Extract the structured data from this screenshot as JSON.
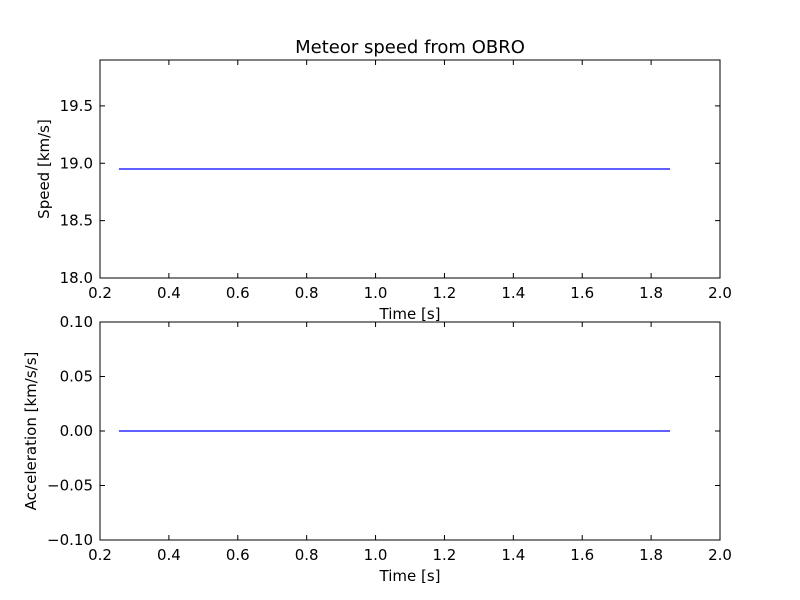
{
  "title": "Meteor speed from  OBRO",
  "chart_data": [
    {
      "type": "line",
      "xlabel": "Time [s]",
      "ylabel": "Speed [km/s]",
      "xlim": [
        0.2,
        2.0
      ],
      "ylim": [
        18.0,
        19.9
      ],
      "xticks": [
        "0.2",
        "0.4",
        "0.6",
        "0.8",
        "1.0",
        "1.2",
        "1.4",
        "1.6",
        "1.8",
        "2.0"
      ],
      "yticks": [
        "18.0",
        "18.5",
        "19.0",
        "19.5"
      ],
      "grid": false,
      "series": [
        {
          "x": [
            0.255,
            1.855
          ],
          "y": [
            18.95,
            18.95
          ],
          "color": "#0000ff"
        }
      ]
    },
    {
      "type": "line",
      "xlabel": "Time [s]",
      "ylabel": "Acceleration [km/s/s]",
      "xlim": [
        0.2,
        2.0
      ],
      "ylim": [
        -0.1,
        0.1
      ],
      "xticks": [
        "0.2",
        "0.4",
        "0.6",
        "0.8",
        "1.0",
        "1.2",
        "1.4",
        "1.6",
        "1.8",
        "2.0"
      ],
      "yticks": [
        "−0.10",
        "−0.05",
        "0.00",
        "0.05",
        "0.10"
      ],
      "grid": false,
      "series": [
        {
          "x": [
            0.255,
            1.855
          ],
          "y": [
            0.0,
            0.0
          ],
          "color": "#0000ff"
        }
      ]
    }
  ]
}
